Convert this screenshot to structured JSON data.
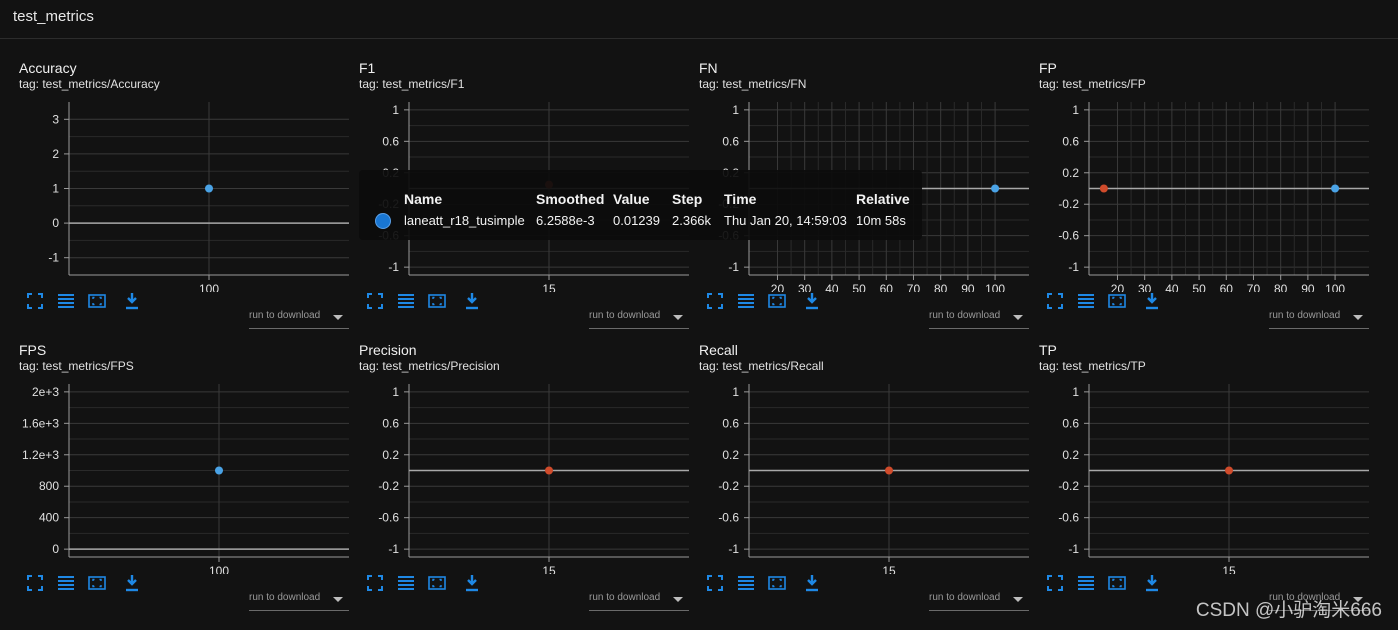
{
  "header": {
    "title": "test_metrics"
  },
  "colors": {
    "accent": "#1e88e5",
    "point_blue": "#4aa3e6",
    "point_red": "#d04b2b",
    "background": "#121212"
  },
  "download": {
    "label": "run to download"
  },
  "toolbar_icons": [
    "fullscreen-icon",
    "list-icon",
    "fit-domain-icon",
    "download-icon"
  ],
  "tooltip": {
    "headers": {
      "name": "Name",
      "smoothed": "Smoothed",
      "value": "Value",
      "step": "Step",
      "time": "Time",
      "relative": "Relative"
    },
    "row": {
      "name": "laneatt_r18_tusimple",
      "smoothed": "6.2588e-3",
      "value": "0.01239",
      "step": "2.366k",
      "time": "Thu Jan 20, 14:59:03",
      "relative": "10m 58s"
    }
  },
  "watermark": "CSDN @小驴淘米666",
  "cards": [
    {
      "title": "Accuracy",
      "tag": "tag: test_metrics/Accuracy"
    },
    {
      "title": "F1",
      "tag": "tag: test_metrics/F1"
    },
    {
      "title": "FN",
      "tag": "tag: test_metrics/FN"
    },
    {
      "title": "FP",
      "tag": "tag: test_metrics/FP"
    },
    {
      "title": "FPS",
      "tag": "tag: test_metrics/FPS"
    },
    {
      "title": "Precision",
      "tag": "tag: test_metrics/Precision"
    },
    {
      "title": "Recall",
      "tag": "tag: test_metrics/Recall"
    },
    {
      "title": "TP",
      "tag": "tag: test_metrics/TP"
    }
  ],
  "chart_data": [
    {
      "type": "scatter",
      "title": "Accuracy",
      "y_ticks": [
        3,
        2,
        1,
        0,
        -1
      ],
      "x_ticks": [
        100
      ],
      "ylim": [
        -1.5,
        3.5
      ],
      "series": [
        {
          "points": [
            {
              "x": 100,
              "y": 1,
              "color": "blue"
            }
          ]
        }
      ]
    },
    {
      "type": "scatter",
      "title": "F1",
      "y_ticks": [
        1,
        0.6,
        0.2,
        -0.2,
        -0.6,
        -1
      ],
      "x_ticks": [
        15
      ],
      "ylim": [
        -1.1,
        1.1
      ],
      "series": [
        {
          "points": [
            {
              "x": 15,
              "y": 0.05,
              "color": "red"
            }
          ]
        }
      ]
    },
    {
      "type": "scatter",
      "title": "FN",
      "y_ticks": [
        1,
        0.6,
        0.2,
        -0.2,
        -0.6,
        -1
      ],
      "x_ticks": [
        20,
        30,
        40,
        50,
        60,
        70,
        80,
        90,
        100
      ],
      "xlim": [
        11,
        111
      ],
      "ylim": [
        -1.1,
        1.1
      ],
      "series": [
        {
          "points": [
            {
              "x": 100,
              "y": 0,
              "color": "blue"
            }
          ]
        }
      ]
    },
    {
      "type": "scatter",
      "title": "FP",
      "y_ticks": [
        1,
        0.6,
        0.2,
        -0.2,
        -0.6,
        -1
      ],
      "x_ticks": [
        20,
        30,
        40,
        50,
        60,
        70,
        80,
        90,
        100
      ],
      "xlim": [
        11,
        111
      ],
      "ylim": [
        -1.1,
        1.1
      ],
      "series": [
        {
          "points": [
            {
              "x": 15,
              "y": 0,
              "color": "red"
            },
            {
              "x": 100,
              "y": 0,
              "color": "blue"
            }
          ]
        }
      ]
    },
    {
      "type": "scatter",
      "title": "FPS",
      "y_ticks": [
        "2e+3",
        "1.6e+3",
        "1.2e+3",
        "800",
        "400",
        "0"
      ],
      "y_tick_values": [
        2000,
        1600,
        1200,
        800,
        400,
        0
      ],
      "x_ticks": [
        100
      ],
      "ylim": [
        -100,
        2100
      ],
      "series": [
        {
          "points": [
            {
              "x": 100,
              "y": 1000,
              "color": "blue"
            }
          ]
        }
      ]
    },
    {
      "type": "scatter",
      "title": "Precision",
      "y_ticks": [
        1,
        0.6,
        0.2,
        -0.2,
        -0.6,
        -1
      ],
      "x_ticks": [
        15
      ],
      "ylim": [
        -1.1,
        1.1
      ],
      "series": [
        {
          "points": [
            {
              "x": 15,
              "y": 0,
              "color": "red"
            }
          ]
        }
      ]
    },
    {
      "type": "scatter",
      "title": "Recall",
      "y_ticks": [
        1,
        0.6,
        0.2,
        -0.2,
        -0.6,
        -1
      ],
      "x_ticks": [
        15
      ],
      "ylim": [
        -1.1,
        1.1
      ],
      "series": [
        {
          "points": [
            {
              "x": 15,
              "y": 0,
              "color": "red"
            }
          ]
        }
      ]
    },
    {
      "type": "scatter",
      "title": "TP",
      "y_ticks": [
        1,
        0.6,
        0.2,
        -0.2,
        -0.6,
        -1
      ],
      "x_ticks": [
        15
      ],
      "ylim": [
        -1.1,
        1.1
      ],
      "series": [
        {
          "points": [
            {
              "x": 15,
              "y": 0,
              "color": "red"
            }
          ]
        }
      ]
    }
  ]
}
